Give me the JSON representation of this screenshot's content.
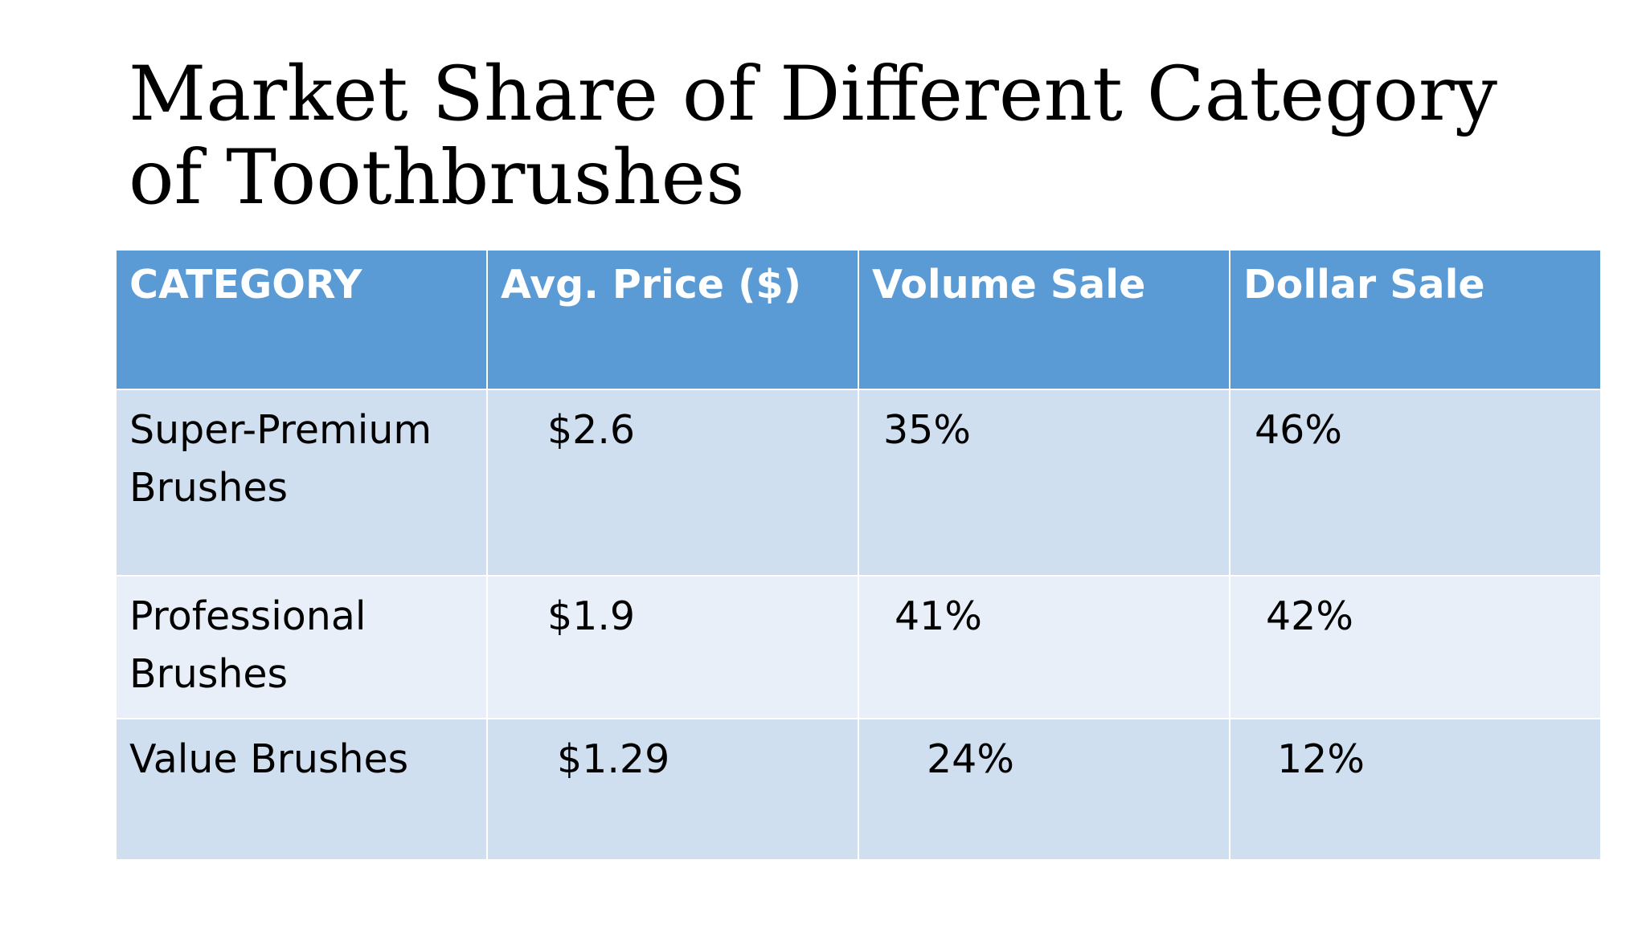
{
  "slide": {
    "title": "Market Share of Different Category of Toothbrushes"
  },
  "table": {
    "headers": [
      "CATEGORY",
      "Avg. Price ($)",
      "Volume Sale",
      "Dollar Sale"
    ],
    "rows": [
      {
        "category": "Super-Premium Brushes",
        "avg_price": "$2.6",
        "volume_sale": "35%",
        "dollar_sale": "46%"
      },
      {
        "category": "Professional Brushes",
        "avg_price": "$1.9",
        "volume_sale": "41%",
        "dollar_sale": "42%"
      },
      {
        "category": "Value Brushes",
        "avg_price": "$1.29",
        "volume_sale": "24%",
        "dollar_sale": "12%"
      }
    ]
  },
  "colors": {
    "header_bg": "#5b9bd5",
    "row_band_dark": "#d0dff0",
    "row_band_light": "#e9eff8"
  }
}
